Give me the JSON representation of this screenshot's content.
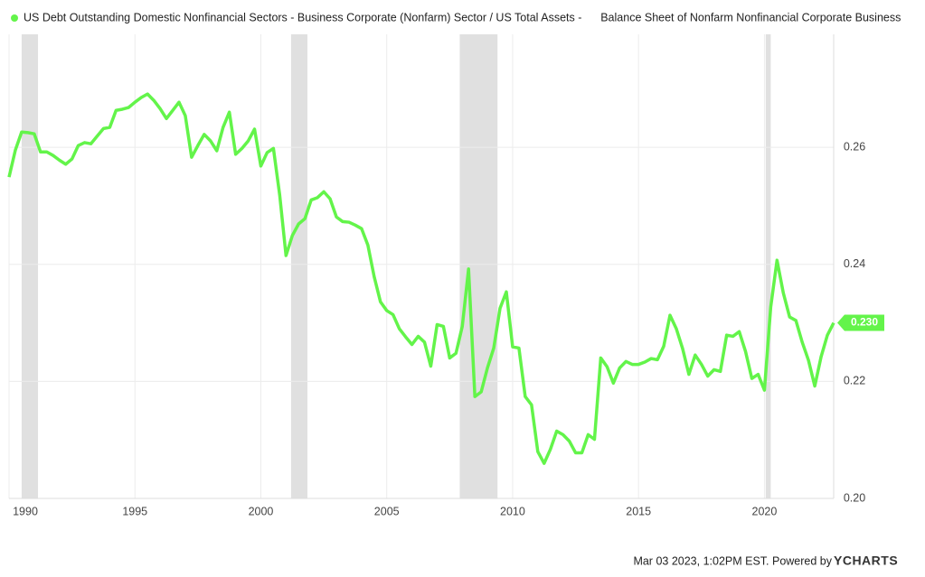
{
  "chart_data": {
    "type": "line",
    "legend": "US Debt Outstanding Domestic Nonfinancial Sectors - Business Corporate (Nonfarm) Sector / US Total Assets -      Balance Sheet of Nonfarm Nonfinancial Corporate Business",
    "footer": "Mar 03 2023, 1:02PM EST. Powered by",
    "brand": "YCHARTS",
    "x": [
      1990,
      1990.25,
      1990.5,
      1990.75,
      1991,
      1991.25,
      1991.5,
      1991.75,
      1992,
      1992.25,
      1992.5,
      1992.75,
      1993,
      1993.25,
      1993.5,
      1993.75,
      1994,
      1994.25,
      1994.5,
      1994.75,
      1995,
      1995.25,
      1995.5,
      1995.75,
      1996,
      1996.25,
      1996.5,
      1996.75,
      1997,
      1997.25,
      1997.5,
      1997.75,
      1998,
      1998.25,
      1998.5,
      1998.75,
      1999,
      1999.25,
      1999.5,
      1999.75,
      2000,
      2000.25,
      2000.5,
      2000.75,
      2001,
      2001.25,
      2001.5,
      2001.75,
      2002,
      2002.25,
      2002.5,
      2002.75,
      2003,
      2003.25,
      2003.5,
      2003.75,
      2004,
      2004.25,
      2004.5,
      2004.75,
      2005,
      2005.25,
      2005.5,
      2005.75,
      2006,
      2006.25,
      2006.5,
      2006.75,
      2007,
      2007.25,
      2007.5,
      2007.75,
      2008,
      2008.25,
      2008.5,
      2008.75,
      2009,
      2009.25,
      2009.5,
      2009.75,
      2010,
      2010.25,
      2010.5,
      2010.75,
      2011,
      2011.25,
      2011.5,
      2011.75,
      2012,
      2012.25,
      2012.5,
      2012.75,
      2013,
      2013.25,
      2013.5,
      2013.75,
      2014,
      2014.25,
      2014.5,
      2014.75,
      2015,
      2015.25,
      2015.5,
      2015.75,
      2016,
      2016.25,
      2016.5,
      2016.75,
      2017,
      2017.25,
      2017.5,
      2017.75,
      2018,
      2018.25,
      2018.5,
      2018.75,
      2019,
      2019.25,
      2019.5,
      2019.75,
      2020,
      2020.25,
      2020.5,
      2020.75,
      2021,
      2021.25,
      2021.5,
      2021.75,
      2022,
      2022.25,
      2022.5,
      2022.75
    ],
    "series": [
      {
        "name": "US Debt Outstanding Domestic Nonfinancial Sectors - Business Corporate (Nonfarm) Sector / US Total Assets -      Balance Sheet of Nonfarm Nonfinancial Corporate Business",
        "color": "#63f44a",
        "values": [
          0.2549,
          0.2595,
          0.2626,
          0.2625,
          0.2623,
          0.2592,
          0.2592,
          0.2586,
          0.2578,
          0.2571,
          0.258,
          0.2603,
          0.2608,
          0.2606,
          0.2619,
          0.2632,
          0.2634,
          0.2663,
          0.2665,
          0.2668,
          0.2677,
          0.2685,
          0.2691,
          0.268,
          0.2666,
          0.2649,
          0.2663,
          0.2677,
          0.2654,
          0.2583,
          0.2603,
          0.2622,
          0.2611,
          0.2594,
          0.2634,
          0.266,
          0.2588,
          0.2598,
          0.2611,
          0.2631,
          0.2568,
          0.2591,
          0.2598,
          0.2518,
          0.2415,
          0.2449,
          0.2469,
          0.2478,
          0.251,
          0.2514,
          0.2524,
          0.2512,
          0.2481,
          0.2473,
          0.2472,
          0.2467,
          0.2461,
          0.2433,
          0.2379,
          0.2336,
          0.2321,
          0.2314,
          0.229,
          0.2276,
          0.2263,
          0.2277,
          0.2267,
          0.2226,
          0.2297,
          0.2294,
          0.224,
          0.2248,
          0.2294,
          0.2392,
          0.2174,
          0.2182,
          0.2223,
          0.2257,
          0.2325,
          0.2353,
          0.2259,
          0.2257,
          0.2174,
          0.216,
          0.208,
          0.206,
          0.2084,
          0.2115,
          0.2109,
          0.2098,
          0.2078,
          0.2078,
          0.2109,
          0.2101,
          0.224,
          0.2225,
          0.2197,
          0.2223,
          0.2234,
          0.2229,
          0.2229,
          0.2233,
          0.2239,
          0.2237,
          0.226,
          0.2313,
          0.229,
          0.2256,
          0.2212,
          0.2245,
          0.2229,
          0.2209,
          0.222,
          0.2217,
          0.2279,
          0.2277,
          0.2285,
          0.2251,
          0.2205,
          0.2212,
          0.2185,
          0.2327,
          0.2407,
          0.2351,
          0.231,
          0.2304,
          0.2267,
          0.2236,
          0.2192,
          0.2242,
          0.2279,
          0.23
        ],
        "value_labels": [
          null,
          null,
          null,
          null,
          null,
          null,
          null,
          null,
          null,
          null,
          null,
          null,
          null,
          null,
          null,
          null,
          null,
          null,
          null,
          null,
          null,
          null,
          null,
          null,
          null,
          null,
          null,
          null,
          null,
          null,
          null,
          null,
          null,
          null,
          null,
          null,
          null,
          null,
          null,
          null,
          null,
          null,
          null,
          null,
          null,
          null,
          null,
          null,
          null,
          null,
          null,
          null,
          null,
          null,
          null,
          null,
          null,
          null,
          null,
          null,
          null,
          null,
          null,
          null,
          null,
          null,
          null,
          null,
          null,
          null,
          null,
          null,
          null,
          null,
          null,
          null,
          null,
          null,
          null,
          null,
          null,
          null,
          null,
          null,
          null,
          null,
          null,
          null,
          null,
          null,
          null,
          null,
          null,
          null,
          null,
          null,
          null,
          null,
          null,
          null,
          null,
          null,
          null,
          null,
          null,
          null,
          null,
          null,
          null,
          null,
          null,
          null,
          null,
          null,
          null,
          null,
          null,
          null,
          null,
          null,
          null,
          null,
          null,
          null,
          null,
          null,
          null,
          null,
          null,
          null,
          null,
          "0.230"
        ]
      }
    ],
    "xlim": [
      1990,
      2022.75
    ],
    "xticks": [
      1990,
      1995,
      2000,
      2005,
      2010,
      2015,
      2020
    ],
    "ylim": [
      0.2,
      0.2793
    ],
    "yticks": [
      {
        "value": 0.2,
        "label": "0.20"
      },
      0.22,
      0.24,
      0.26
    ],
    "recessions": [
      [
        1990.5,
        1991.15
      ],
      [
        2001.2,
        2001.85
      ],
      [
        2007.9,
        2009.4
      ],
      [
        2020.05,
        2020.25
      ]
    ],
    "grid": true
  }
}
